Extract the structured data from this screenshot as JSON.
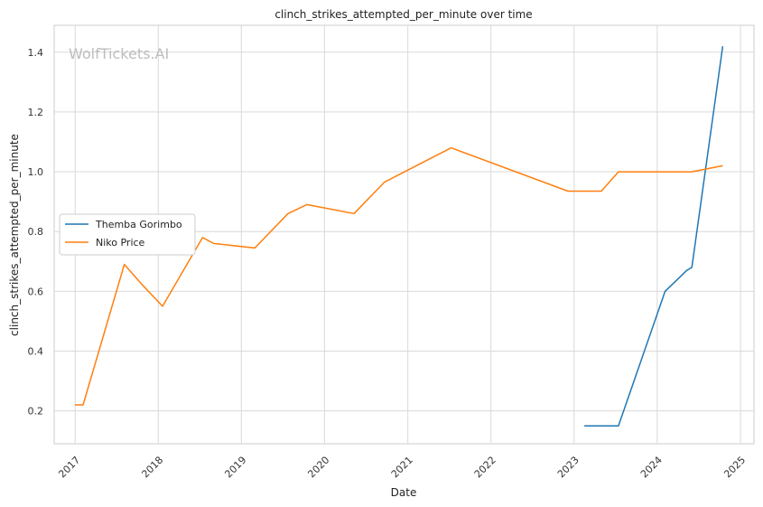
{
  "chart_data": {
    "type": "line",
    "title": "clinch_strikes_attempted_per_minute over time",
    "xlabel": "Date",
    "ylabel": "clinch_strikes_attempted_per_minute",
    "watermark": "WolfTickets.AI",
    "x_ticks": [
      "2017",
      "2018",
      "2019",
      "2020",
      "2021",
      "2022",
      "2023",
      "2024",
      "2025"
    ],
    "y_ticks": [
      "0.2",
      "0.4",
      "0.6",
      "0.8",
      "1.0",
      "1.2",
      "1.4"
    ],
    "xlim": [
      "2016-10-01",
      "2025-03-01"
    ],
    "ylim": [
      0.09,
      1.49
    ],
    "grid": true,
    "legend_position": "center-left",
    "series": [
      {
        "name": "Themba Gorimbo",
        "color": "#1f77b4",
        "points": [
          [
            "2023-02-15",
            0.15
          ],
          [
            "2023-07-01",
            0.15
          ],
          [
            "2023-07-15",
            0.15
          ],
          [
            "2024-02-05",
            0.6
          ],
          [
            "2024-05-10",
            0.67
          ],
          [
            "2024-06-01",
            0.68
          ],
          [
            "2024-10-15",
            1.42
          ]
        ]
      },
      {
        "name": "Niko Price",
        "color": "#ff7f0e",
        "points": [
          [
            "2016-12-31",
            0.22
          ],
          [
            "2017-02-05",
            0.22
          ],
          [
            "2017-08-05",
            0.69
          ],
          [
            "2017-10-25",
            0.62
          ],
          [
            "2018-01-20",
            0.55
          ],
          [
            "2018-07-15",
            0.78
          ],
          [
            "2018-09-01",
            0.76
          ],
          [
            "2019-03-01",
            0.745
          ],
          [
            "2019-07-25",
            0.86
          ],
          [
            "2019-10-15",
            0.89
          ],
          [
            "2020-05-10",
            0.86
          ],
          [
            "2020-09-20",
            0.965
          ],
          [
            "2021-07-10",
            1.08
          ],
          [
            "2022-12-05",
            0.935
          ],
          [
            "2023-05-01",
            0.935
          ],
          [
            "2023-07-15",
            1.0
          ],
          [
            "2024-06-01",
            1.0
          ],
          [
            "2024-10-15",
            1.02
          ]
        ]
      }
    ]
  }
}
